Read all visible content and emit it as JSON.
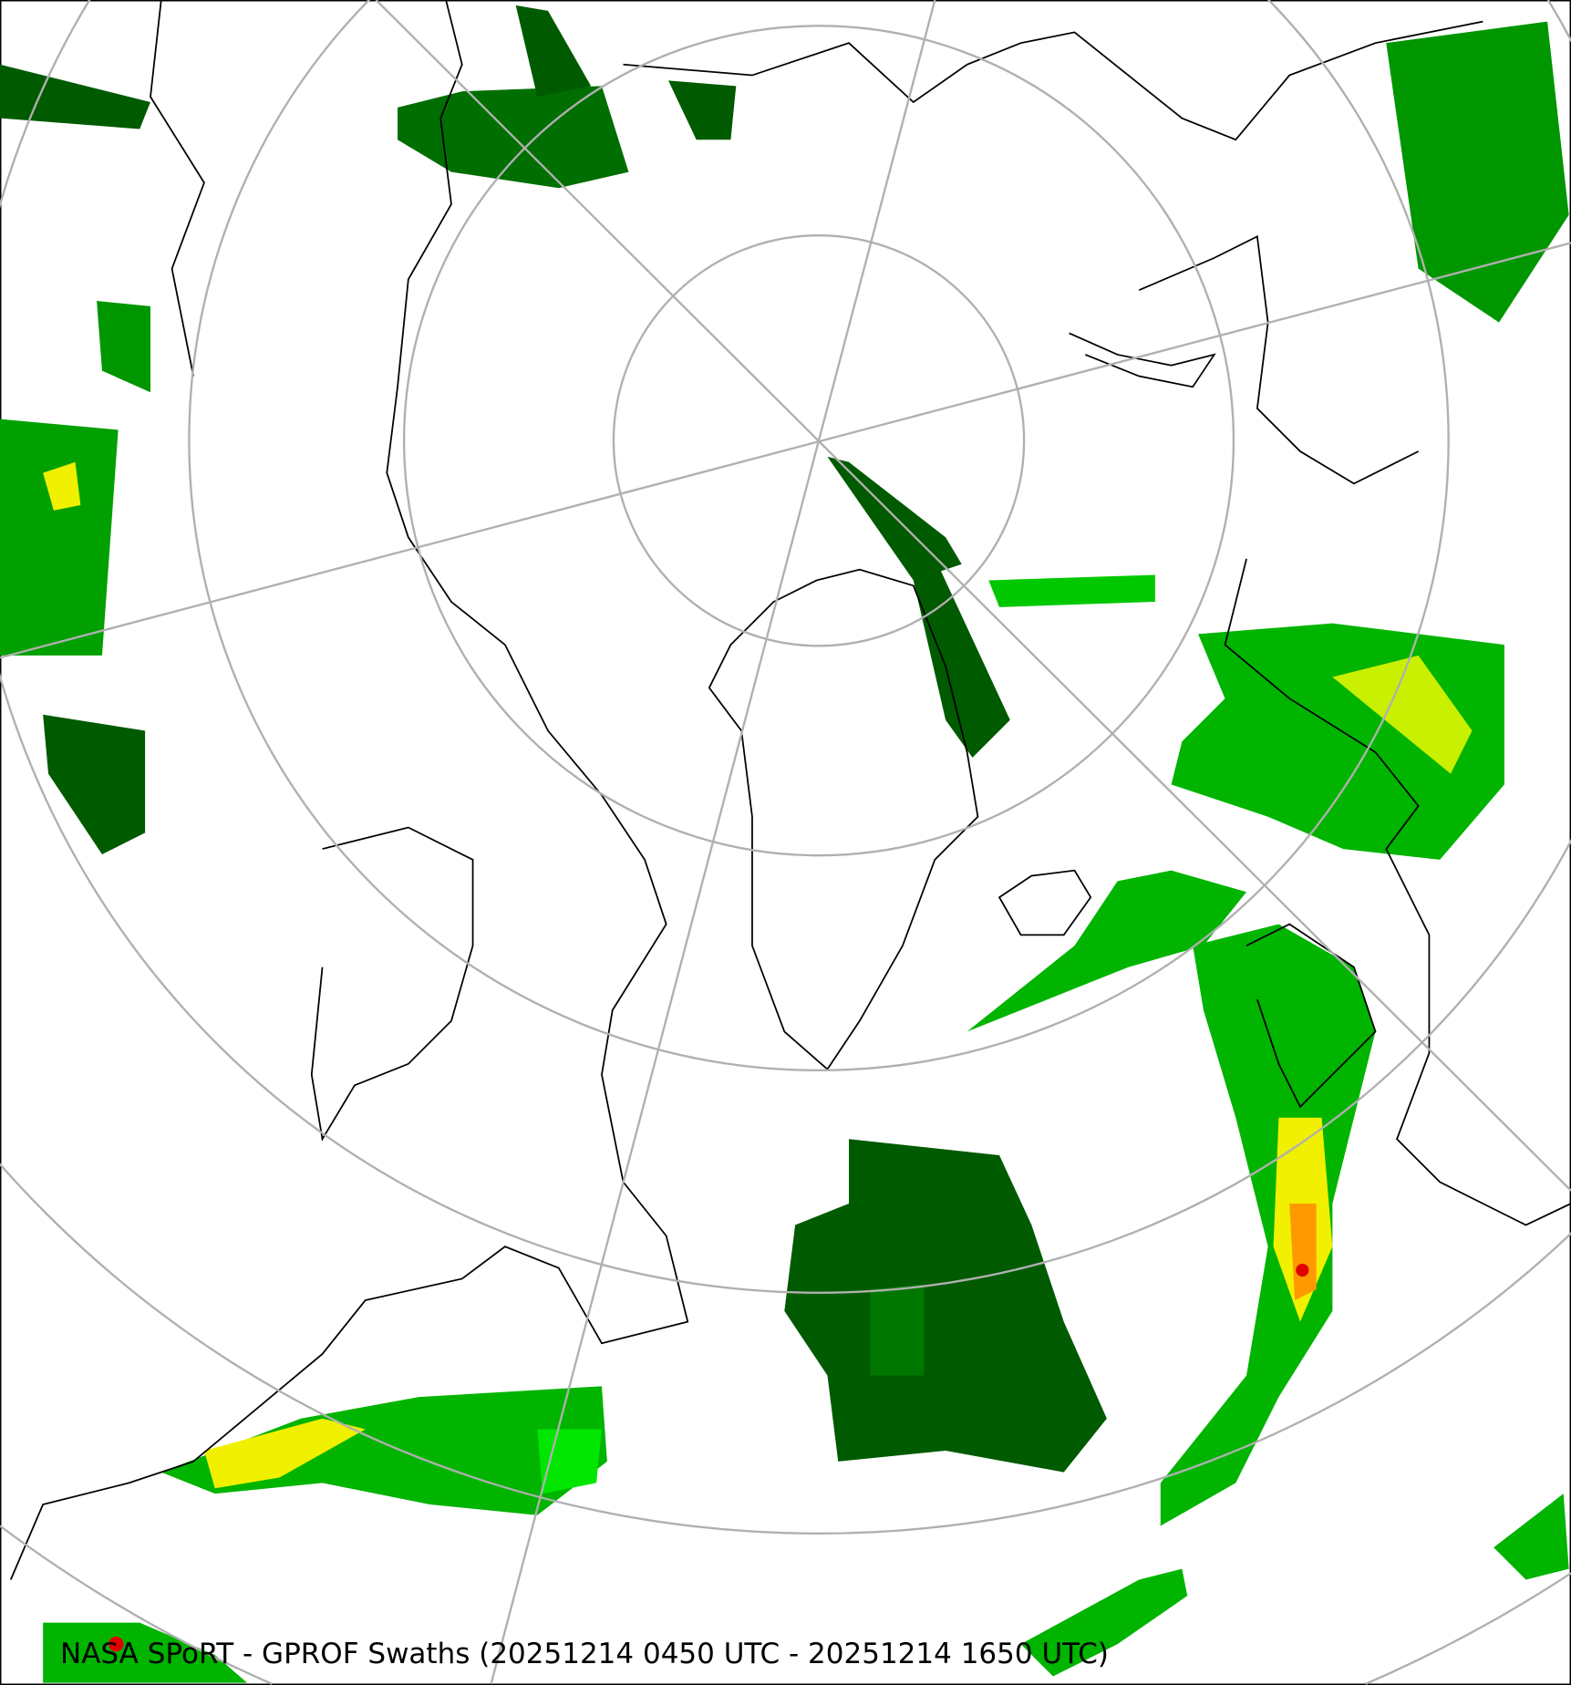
{
  "map": {
    "caption": "NASA SPoRT - GPROF Swaths (20251214 0450 UTC - 20251214 1650 UTC)",
    "projection": "north-polar-stereographic",
    "colors": {
      "graticule": "#b0b0b0",
      "coastline": "#000000",
      "precip_dark_green": "#005a00",
      "precip_green": "#009600",
      "precip_light_green": "#00e600",
      "precip_yellow": "#f0f000",
      "precip_orange": "#ff9900",
      "precip_red": "#e00000"
    }
  }
}
